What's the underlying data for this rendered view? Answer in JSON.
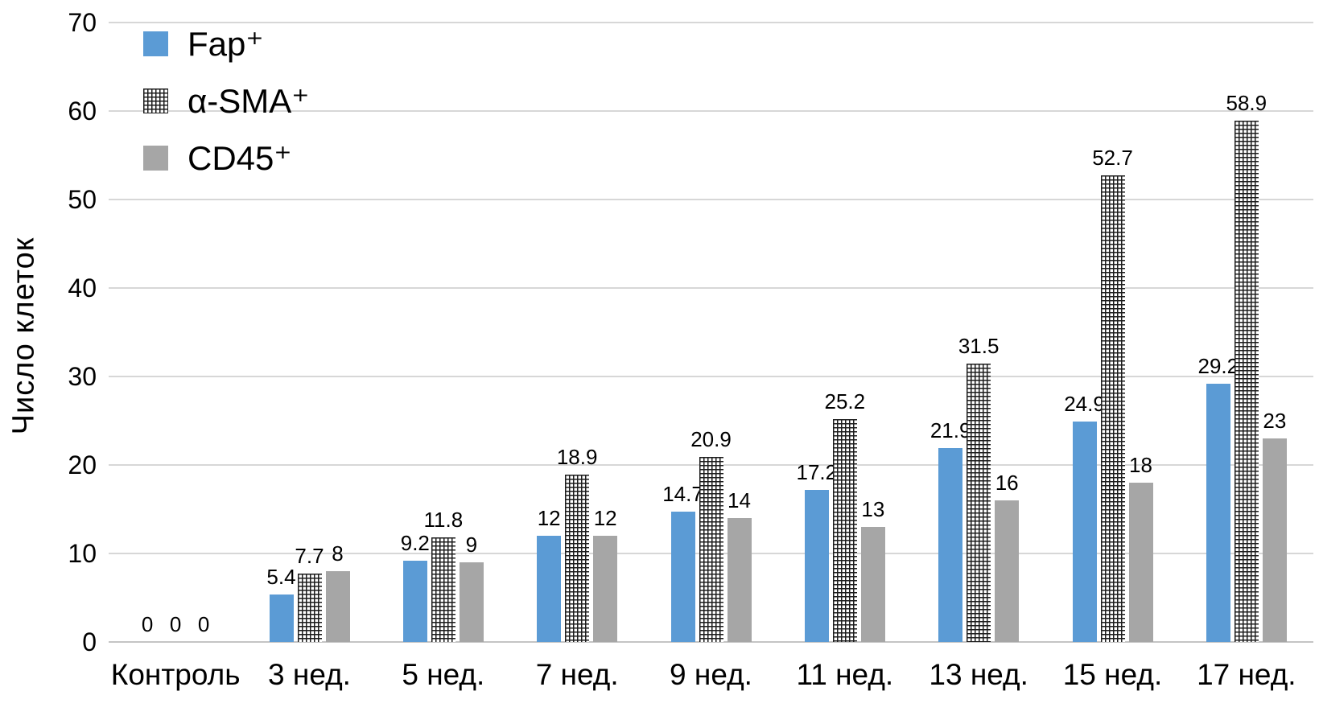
{
  "figure": {
    "background_color": "#ffffff",
    "text_color": "#000000",
    "gridline_color": "#d7d7d7",
    "axis_line_color": "#c4c4c4"
  },
  "chart_data": {
    "type": "bar",
    "title": "",
    "xlabel": "",
    "ylabel": "Число клеток",
    "ylim": [
      0,
      70
    ],
    "ytick_step": 10,
    "yticks": [
      0,
      10,
      20,
      30,
      40,
      50,
      60,
      70
    ],
    "grid": true,
    "data_labels": true,
    "legend_position": "top-left-inside",
    "categories": [
      "Контроль",
      "3 нед.",
      "5 нед.",
      "7 нед.",
      "9 нед.",
      "11 нед.",
      "13 нед.",
      "15 нед.",
      "17 нед."
    ],
    "series": [
      {
        "name": "Fap⁺",
        "style": "solid",
        "color": "#5b9bd5",
        "values": [
          0,
          5.4,
          9.2,
          12,
          14.7,
          17.2,
          21.9,
          24.9,
          29.2
        ]
      },
      {
        "name": "α-SMA⁺",
        "style": "crosshatch",
        "color": "#ffffff",
        "pattern_color": "#1c1c1c",
        "values": [
          0,
          7.7,
          11.8,
          18.9,
          20.9,
          25.2,
          31.5,
          52.7,
          58.9
        ]
      },
      {
        "name": "CD45⁺",
        "style": "solid",
        "color": "#a6a6a6",
        "values": [
          0,
          8,
          9,
          12,
          14,
          13,
          16,
          18,
          23
        ]
      }
    ]
  }
}
